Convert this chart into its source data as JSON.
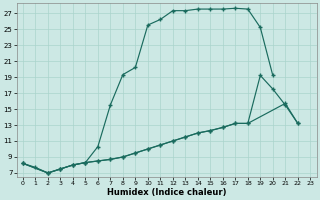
{
  "xlabel": "Humidex (Indice chaleur)",
  "background_color": "#cce8e4",
  "line_color": "#1a6b5e",
  "grid_color": "#aad4cc",
  "xlim": [
    -0.5,
    23.5
  ],
  "ylim": [
    6.5,
    28.2
  ],
  "xtick_vals": [
    0,
    1,
    2,
    3,
    4,
    5,
    6,
    7,
    8,
    9,
    10,
    11,
    12,
    13,
    14,
    15,
    16,
    17,
    18,
    19,
    20,
    21,
    22,
    23
  ],
  "ytick_vals": [
    7,
    9,
    11,
    13,
    15,
    17,
    19,
    21,
    23,
    25,
    27
  ],
  "curve1_x": [
    0,
    1,
    2,
    3,
    4,
    5,
    6,
    7,
    8,
    9,
    10,
    11,
    12,
    13,
    14,
    15,
    16,
    17,
    18,
    19,
    20
  ],
  "curve1_y": [
    8.2,
    7.7,
    7.0,
    7.5,
    8.0,
    8.3,
    10.3,
    15.5,
    19.3,
    20.2,
    25.5,
    26.2,
    27.3,
    27.3,
    27.5,
    27.5,
    27.5,
    27.6,
    27.5,
    25.2,
    19.2
  ],
  "curve2_x": [
    0,
    2,
    3,
    4,
    5,
    6,
    7,
    8,
    9,
    10,
    11,
    12,
    13,
    14,
    15,
    16,
    17,
    18,
    19,
    20,
    21,
    22
  ],
  "curve2_y": [
    8.2,
    7.0,
    7.5,
    8.0,
    8.3,
    8.5,
    8.7,
    9.0,
    9.5,
    10.0,
    10.5,
    11.0,
    11.5,
    12.0,
    12.3,
    12.7,
    13.2,
    13.2,
    19.2,
    17.5,
    15.5,
    13.2
  ],
  "curve3_x": [
    0,
    2,
    3,
    4,
    5,
    6,
    7,
    8,
    9,
    10,
    11,
    12,
    13,
    14,
    15,
    16,
    17,
    18,
    21,
    22
  ],
  "curve3_y": [
    8.2,
    7.0,
    7.5,
    8.0,
    8.3,
    8.5,
    8.7,
    9.0,
    9.5,
    10.0,
    10.5,
    11.0,
    11.5,
    12.0,
    12.3,
    12.7,
    13.2,
    13.2,
    15.7,
    13.2
  ]
}
